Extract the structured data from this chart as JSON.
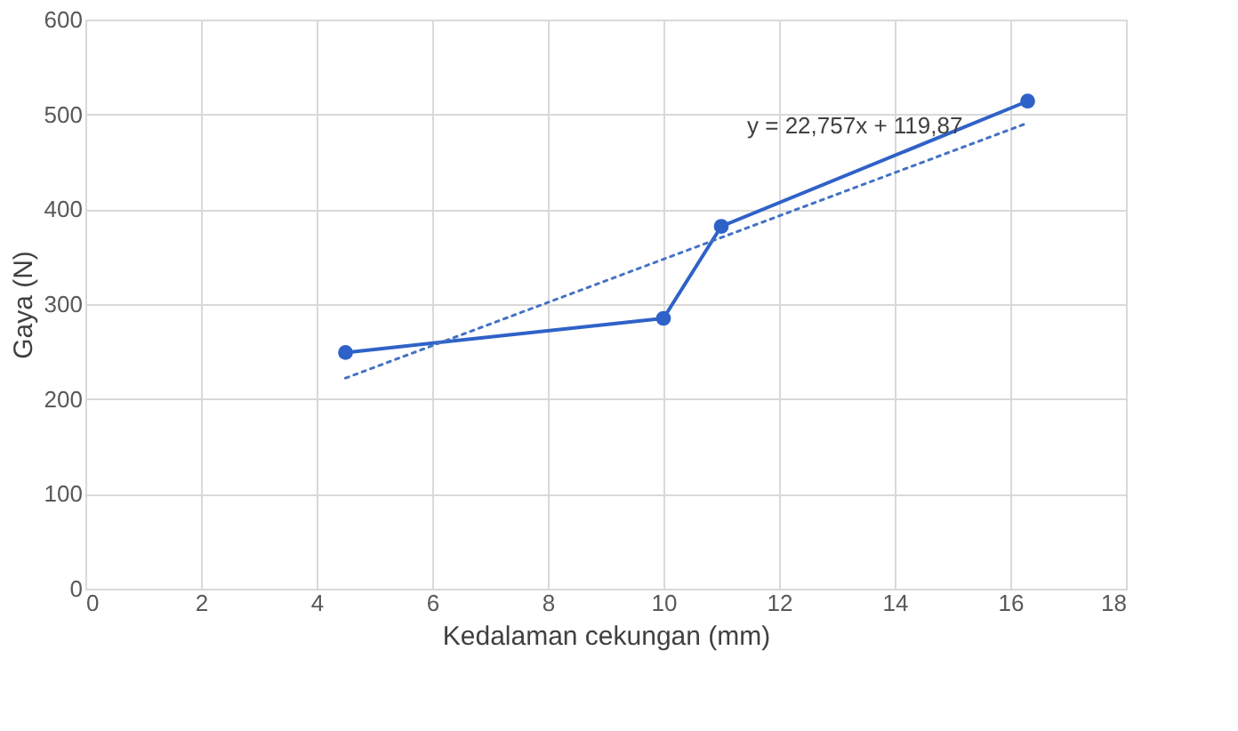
{
  "chart_data": {
    "type": "line",
    "xlabel": "Kedalaman cekungan (mm)",
    "ylabel": "Gaya (N)",
    "series": [
      {
        "color": "#2f62c8",
        "marker": "circle",
        "line_style": "solid",
        "x": [
          4.5,
          10,
          11,
          16.3
        ],
        "values": [
          249,
          285,
          382,
          514
        ]
      },
      {
        "color": "#4472c4",
        "marker": "none",
        "line_style": "dotted",
        "x": [
          4.5,
          16.3
        ],
        "values": [
          222,
          491
        ]
      }
    ],
    "annotations": [
      "y = 22,757x + 119,87"
    ],
    "xlim": [
      0,
      18
    ],
    "xticks": [
      0,
      2,
      4,
      6,
      8,
      10,
      12,
      14,
      16,
      18
    ],
    "ylim": [
      0,
      600
    ],
    "yticks": [
      0,
      100,
      200,
      300,
      400,
      500,
      600
    ],
    "grid": true
  }
}
